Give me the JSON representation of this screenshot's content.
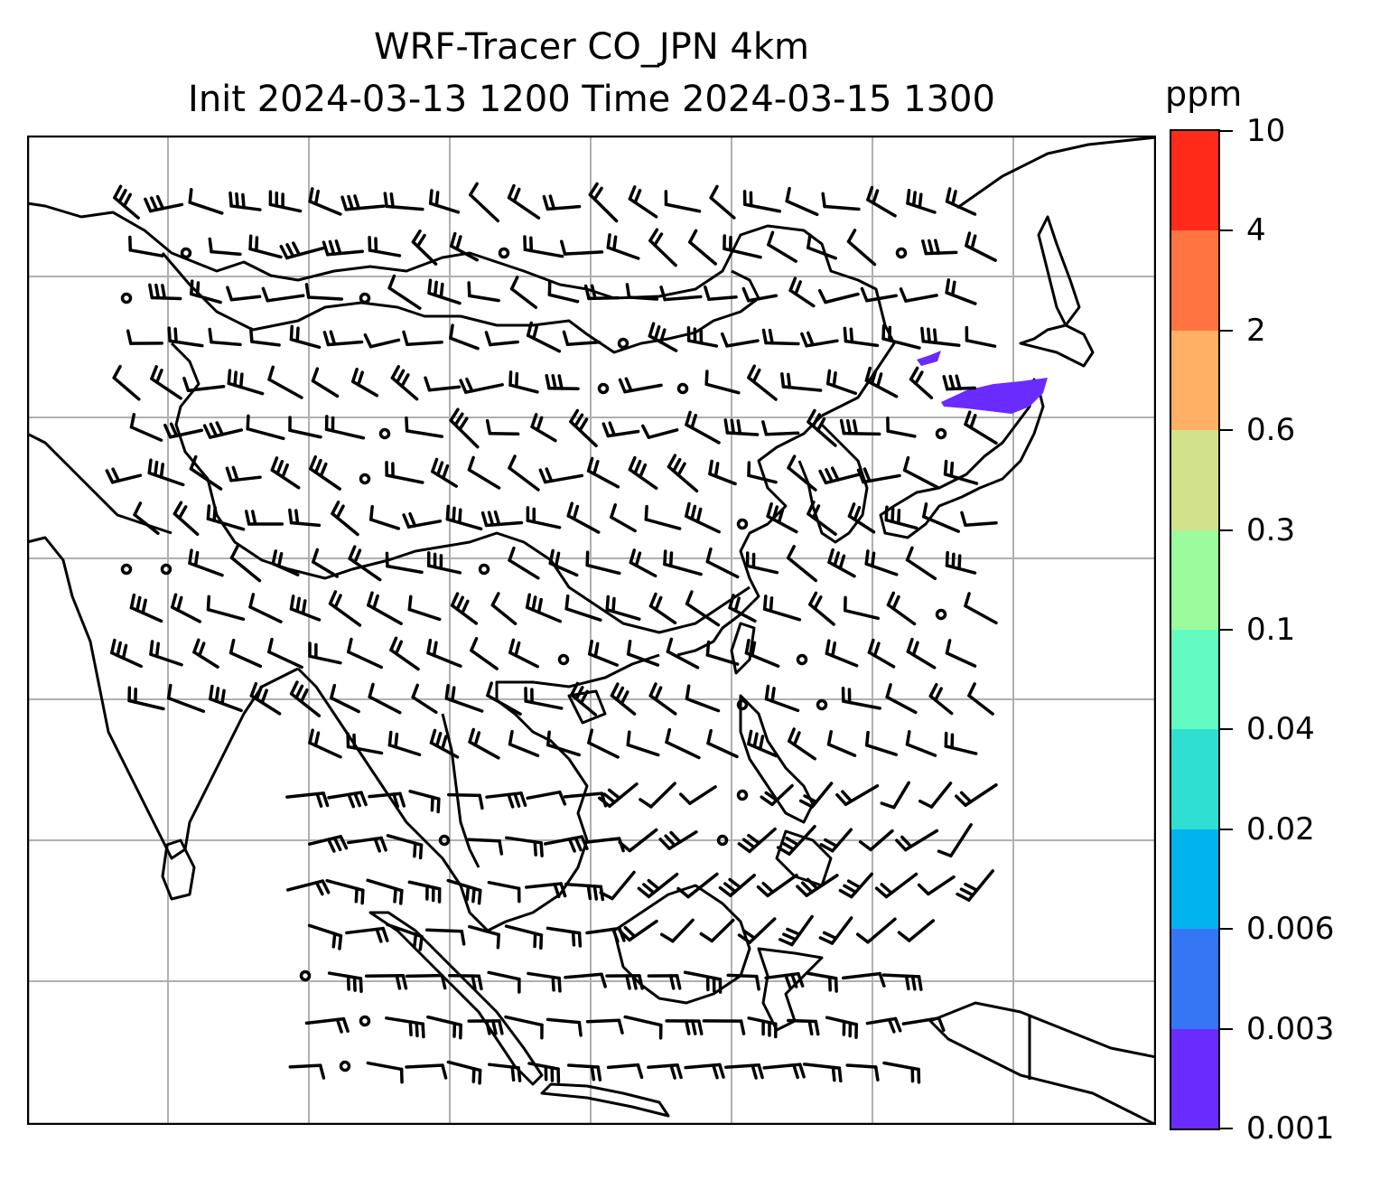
{
  "title": {
    "line1": "WRF-Tracer CO_JPN 4km",
    "line2": "Init 2024-03-13 1200 Time 2024-03-15 1300"
  },
  "colorbar": {
    "unit": "ppm",
    "levels": [
      "0.001",
      "0.003",
      "0.006",
      "0.02",
      "0.04",
      "0.1",
      "0.3",
      "0.6",
      "2",
      "4",
      "10"
    ],
    "colors": [
      "#6a2bff",
      "#3576f5",
      "#00b2ee",
      "#2fe0d2",
      "#64fbc2",
      "#9cfb9c",
      "#d2e28a",
      "#ffb065",
      "#ff7440",
      "#ff2a1a"
    ]
  },
  "map": {
    "gridlines": true,
    "tracer_plume_color": "#6a2bff",
    "wind_barbs": true
  }
}
